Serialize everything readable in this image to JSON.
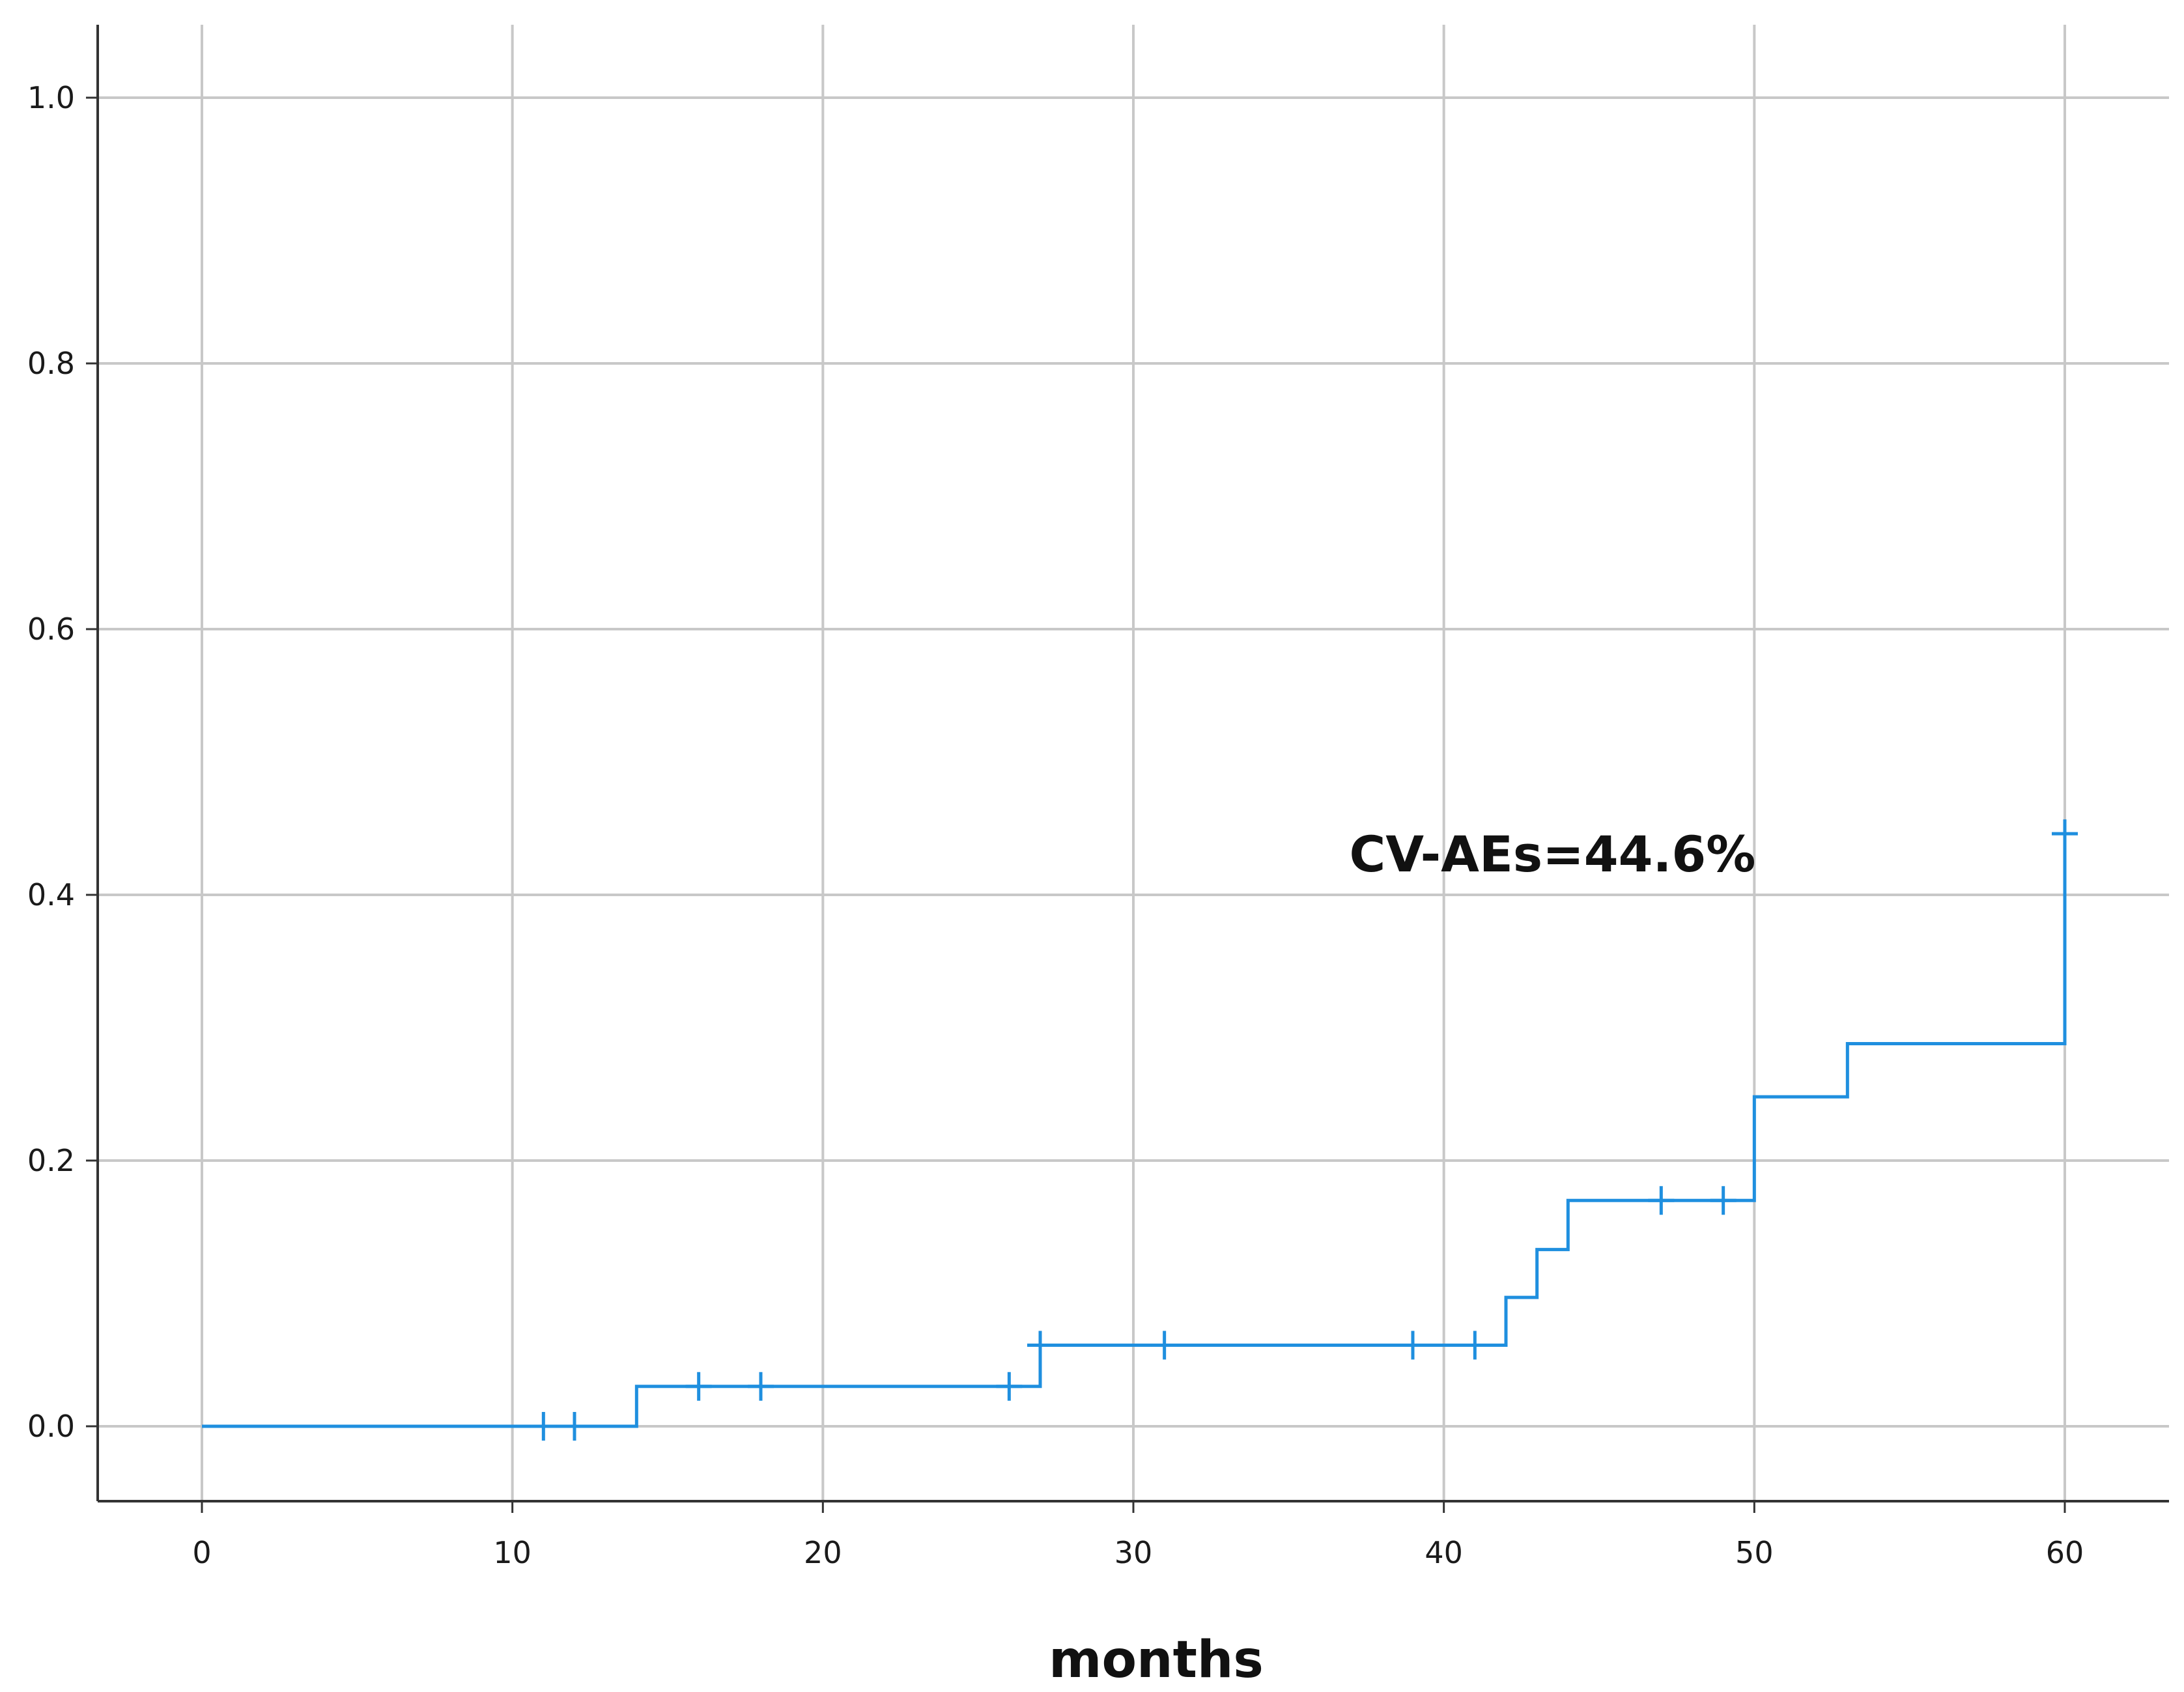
{
  "chart_data": {
    "type": "line",
    "title": "",
    "xlabel": "months",
    "ylabel": "",
    "xlim": [
      0,
      60
    ],
    "ylim": [
      0,
      1.0
    ],
    "x_ticks": [
      "0",
      "10",
      "20",
      "30",
      "40",
      "50",
      "60"
    ],
    "y_ticks": [
      "0.0",
      "0.2",
      "0.4",
      "0.6",
      "0.8",
      "1.0"
    ],
    "grid": true,
    "legend": "none",
    "line_color": "#1f8fdf",
    "grid_color": "#c8c8c8",
    "step_curve": {
      "x": [
        0,
        14,
        27,
        42,
        43,
        44,
        50,
        53,
        60
      ],
      "y": [
        0.0,
        0.03,
        0.061,
        0.097,
        0.133,
        0.17,
        0.248,
        0.288,
        0.446
      ]
    },
    "censored": {
      "x": [
        11,
        12,
        16,
        18,
        26,
        27,
        31,
        39,
        41,
        47,
        49,
        60
      ],
      "y": [
        0.0,
        0.0,
        0.03,
        0.03,
        0.03,
        0.061,
        0.061,
        0.061,
        0.061,
        0.17,
        0.17,
        0.446
      ]
    },
    "annotation": {
      "text": "CV-AEs=44.6%",
      "x": 43.5,
      "y": 0.43
    }
  }
}
